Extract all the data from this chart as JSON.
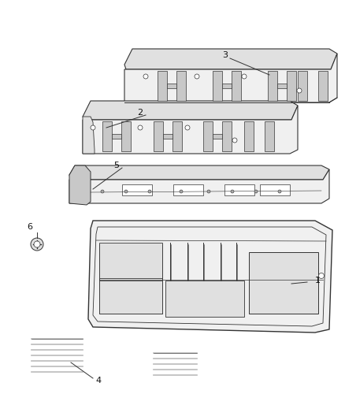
{
  "background_color": "#ffffff",
  "fig_width": 4.38,
  "fig_height": 5.33,
  "dpi": 100,
  "ec": "#333333",
  "face_light": "#f0f0f0",
  "face_mid": "#e0e0e0",
  "face_dark": "#c8c8c8"
}
